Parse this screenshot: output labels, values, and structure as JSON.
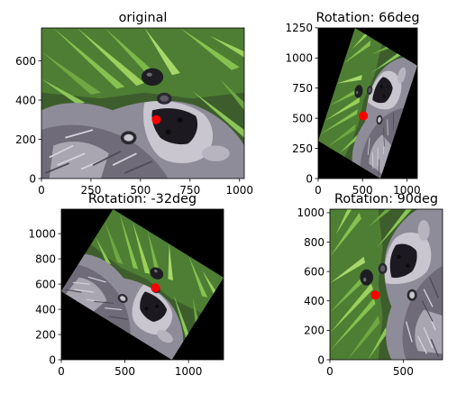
{
  "chart_data": [
    {
      "type": "image",
      "title": "original",
      "xlim": [
        0,
        1024
      ],
      "ylim": [
        0,
        768
      ],
      "xticks": [
        0,
        250,
        500,
        750,
        1000
      ],
      "xtick_labels": [
        "0",
        "250",
        "500",
        "750",
        "1000"
      ],
      "yticks": [
        0,
        200,
        400,
        600
      ],
      "ytick_labels": [
        "0",
        "200",
        "400",
        "600"
      ],
      "rotation_deg": 0,
      "image_w": 1024,
      "image_h": 768,
      "marker": {
        "x": 580,
        "y": 300,
        "color": "#ff0000"
      }
    },
    {
      "type": "image",
      "title": "Rotation: 66deg",
      "xlim": [
        0,
        1118
      ],
      "ylim": [
        0,
        1249
      ],
      "xticks": [
        0,
        500,
        1000
      ],
      "xtick_labels": [
        "0",
        "500",
        "1000"
      ],
      "yticks": [
        0,
        250,
        500,
        750,
        1000,
        1250
      ],
      "ytick_labels": [
        "0",
        "250",
        "500",
        "750",
        "1000",
        "1250"
      ],
      "rotation_deg": 66,
      "image_w": 1024,
      "image_h": 768,
      "marker": {
        "x": 510,
        "y": 520,
        "color": "#ff0000"
      }
    },
    {
      "type": "image",
      "title": "Rotation: -32deg",
      "xlim": [
        0,
        1275
      ],
      "ylim": [
        0,
        1194
      ],
      "xticks": [
        0,
        500,
        1000
      ],
      "xtick_labels": [
        "0",
        "500",
        "1000"
      ],
      "yticks": [
        0,
        200,
        400,
        600,
        800,
        1000
      ],
      "ytick_labels": [
        "0",
        "200",
        "400",
        "600",
        "800",
        "1000"
      ],
      "rotation_deg": -32,
      "image_w": 1024,
      "image_h": 768,
      "marker": {
        "x": 740,
        "y": 570,
        "color": "#ff0000"
      }
    },
    {
      "type": "image",
      "title": "Rotation: 90deg",
      "xlim": [
        0,
        768
      ],
      "ylim": [
        0,
        1024
      ],
      "xticks": [
        0,
        500
      ],
      "xtick_labels": [
        "0",
        "500"
      ],
      "yticks": [
        0,
        200,
        400,
        600,
        800,
        1000
      ],
      "ytick_labels": [
        "0",
        "200",
        "400",
        "600",
        "800",
        "1000"
      ],
      "rotation_deg": 90,
      "image_w": 1024,
      "image_h": 768,
      "marker": {
        "x": 310,
        "y": 440,
        "color": "#ff0000"
      }
    }
  ],
  "colors": {
    "background_fill": "#000000",
    "fur_light": "#9a97a3",
    "fur_dark": "#4a4650",
    "leaf_light": "#7bb84a",
    "leaf_dark": "#2e5a1e",
    "mask": "#1c1a20",
    "marker": "#ff0000"
  }
}
